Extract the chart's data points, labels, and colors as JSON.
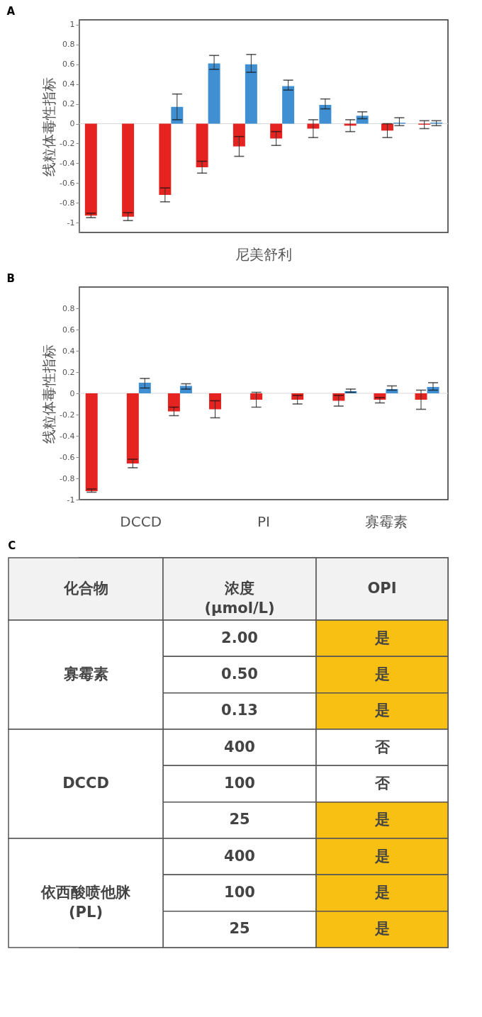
{
  "chart_data": [
    {
      "type": "bar",
      "title": "A",
      "ylabel": "线粒体毒性指标",
      "categories": [
        null,
        null,
        null,
        null,
        null,
        null,
        null,
        null,
        null,
        null
      ],
      "series": [
        {
          "color": "#e52421",
          "values": [
            -0.93,
            -0.94,
            -0.72,
            -0.44,
            -0.23,
            -0.15,
            -0.05,
            -0.02,
            -0.07,
            -0.01
          ],
          "errors": [
            [
              -0.95,
              -0.905
            ],
            [
              -0.98,
              -0.9
            ],
            [
              -0.79,
              -0.65
            ],
            [
              -0.5,
              -0.38
            ],
            [
              -0.33,
              -0.13
            ],
            [
              -0.22,
              -0.08
            ],
            [
              -0.14,
              0.04
            ],
            [
              -0.08,
              0.04
            ],
            [
              -0.14,
              0.0
            ],
            [
              -0.05,
              0.03
            ]
          ]
        },
        {
          "color": "#3f8fd2",
          "values": [
            null,
            null,
            0.17,
            0.61,
            0.6,
            0.38,
            0.19,
            0.08,
            0.01,
            0.01
          ],
          "errors": [
            null,
            null,
            [
              0.04,
              0.3
            ],
            [
              0.55,
              0.69
            ],
            [
              0.52,
              0.7
            ],
            [
              0.34,
              0.44
            ],
            [
              0.15,
              0.25
            ],
            [
              0.05,
              0.12
            ],
            [
              -0.02,
              0.06
            ],
            [
              -0.02,
              0.03
            ]
          ]
        }
      ],
      "ylim": [
        -1.1,
        1.05
      ],
      "yticks": [
        -1,
        -0.8,
        -0.6,
        -0.4,
        -0.2,
        0,
        0.2,
        0.4,
        0.6,
        0.8,
        1
      ],
      "ref_lines": [
        {
          "axis": "y",
          "value": 0,
          "color": "#d9d9d9"
        }
      ],
      "annotations": [
        "尼美舒利"
      ],
      "tick_labels": "y",
      "grid": false,
      "legend": false
    },
    {
      "type": "bar",
      "title": "B",
      "ylabel": "线粒体毒性指标",
      "categories": [
        null,
        null,
        null,
        null,
        null,
        null,
        null,
        null,
        null
      ],
      "series": [
        {
          "color": "#e52421",
          "values": [
            -0.92,
            -0.66,
            -0.17,
            -0.15,
            -0.06,
            -0.06,
            -0.07,
            -0.06,
            -0.06
          ],
          "errors": [
            [
              -0.93,
              -0.9
            ],
            [
              -0.7,
              -0.62
            ],
            [
              -0.21,
              -0.13
            ],
            [
              -0.23,
              -0.07
            ],
            [
              -0.13,
              0.01
            ],
            [
              -0.1,
              -0.02
            ],
            [
              -0.12,
              -0.02
            ],
            [
              -0.09,
              -0.04
            ],
            [
              -0.15,
              0.03
            ]
          ]
        },
        {
          "color": "#3f8fd2",
          "values": [
            null,
            0.1,
            0.07,
            null,
            null,
            null,
            0.02,
            0.04,
            0.06
          ],
          "errors": [
            null,
            [
              0.05,
              0.14
            ],
            [
              0.04,
              0.09
            ],
            null,
            null,
            null,
            [
              0.01,
              0.04
            ],
            [
              0.03,
              0.07
            ],
            [
              0.03,
              0.1
            ]
          ]
        }
      ],
      "ylim": [
        -1,
        1
      ],
      "yticks": [
        -1,
        -0.8,
        -0.6,
        -0.4,
        -0.2,
        0,
        0.2,
        0.4,
        0.6,
        0.8
      ],
      "ref_lines": [
        {
          "axis": "y",
          "value": 0,
          "color": "#d9d9d9"
        }
      ],
      "annotations": [
        "DCCD",
        "PI",
        "寡霉素"
      ],
      "tick_labels": "y",
      "grid": false,
      "legend": false
    },
    {
      "type": "other",
      "title": "C",
      "annotations": [
        "化合物",
        "浓度\n(μmol/L)",
        "OPI",
        "寡霉素",
        "2.00",
        "是",
        "0.50",
        "是",
        "0.13",
        "是",
        "DCCD",
        "400",
        "否",
        "100",
        "否",
        "25",
        "是",
        "依西酸喷他脒\n(PL)",
        "400",
        "是",
        "100",
        "是",
        "25",
        "是"
      ],
      "colors": [
        "#f8c012",
        "#f8c012",
        "#f8c012",
        "#ffffff",
        "#ffffff",
        "#f8c012",
        "#f8c012",
        "#f8c012",
        "#f8c012"
      ]
    }
  ]
}
